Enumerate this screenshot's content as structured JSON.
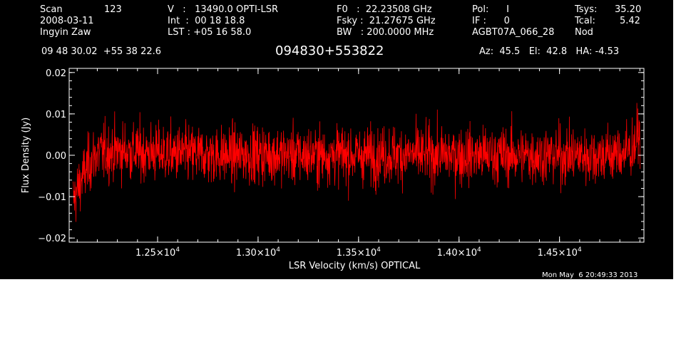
{
  "header": {
    "scan_label": "Scan",
    "scan_number": "123",
    "date": "2008-03-11",
    "observer": "Ingyin Zaw",
    "velocity": "V   :   13490.0 OPTI-LSR",
    "int_time": "Int  :  00 18 18.8",
    "lst": "LST : +05 16 58.0",
    "f0": "F0   :  22.23508 GHz",
    "fsky": "Fsky :  21.27675 GHz",
    "bw": "BW   : 200.0000 MHz",
    "pol": "Pol:      I",
    "if": "IF :      0",
    "project": "AGBT07A_066_28",
    "tsys_label": "Tsys:",
    "tsys_value": "35.20",
    "tcal_label": "Tcal:",
    "tcal_value": "5.42",
    "mode": "Nod",
    "coords": "09 48 30.02  +55 38 22.6",
    "source": "094830+553822",
    "az_el_ha": "Az:  45.5   El:  42.8   HA: -4.53"
  },
  "footer": {
    "timestamp": "Mon May  6 20:49:33 2013"
  },
  "chart_data": {
    "type": "line",
    "xlabel": "LSR Velocity (km/s) OPTICAL",
    "ylabel": "Flux Density (Jy)",
    "xlim": [
      12060,
      14920
    ],
    "ylim": [
      -0.021,
      0.021
    ],
    "x_ticks": [
      {
        "value": 12500,
        "mant": "1.25",
        "exp": "4"
      },
      {
        "value": 13000,
        "mant": "1.30",
        "exp": "4"
      },
      {
        "value": 13500,
        "mant": "1.35",
        "exp": "4"
      },
      {
        "value": 14000,
        "mant": "1.40",
        "exp": "4"
      },
      {
        "value": 14500,
        "mant": "1.45",
        "exp": "4"
      }
    ],
    "y_ticks": [
      {
        "value": 0.02,
        "label": "0.02"
      },
      {
        "value": 0.01,
        "label": "0.01"
      },
      {
        "value": 0.0,
        "label": "0.00"
      },
      {
        "value": -0.01,
        "label": "−0.01"
      },
      {
        "value": -0.02,
        "label": "−0.02"
      }
    ],
    "line_color": "#ff0000",
    "axis_color": "#ffffff",
    "series": [
      {
        "x": [
          12080,
          12120,
          12160,
          12200,
          12300,
          12400,
          12500,
          12600,
          12700,
          12800,
          12900,
          13000,
          13100,
          13200,
          13300,
          13400,
          13500,
          13600,
          13700,
          13800,
          13900,
          14000,
          14100,
          14200,
          14300,
          14400,
          14500,
          14600,
          14700,
          14800,
          14850,
          14880,
          14900
        ],
        "y": [
          -0.011,
          -0.006,
          -0.002,
          0.0005,
          0.001,
          0.0008,
          0.0005,
          0.0003,
          0.0002,
          0.0,
          0.0,
          0.0003,
          0.0002,
          0.0,
          0.0,
          0.0002,
          0.0,
          0.0,
          0.0002,
          0.0,
          0.0,
          0.0,
          0.0,
          0.0,
          0.0,
          0.0,
          0.0,
          0.0,
          0.0,
          0.0005,
          0.001,
          0.003,
          0.006
        ],
        "noise_rms": 0.0035
      }
    ]
  }
}
